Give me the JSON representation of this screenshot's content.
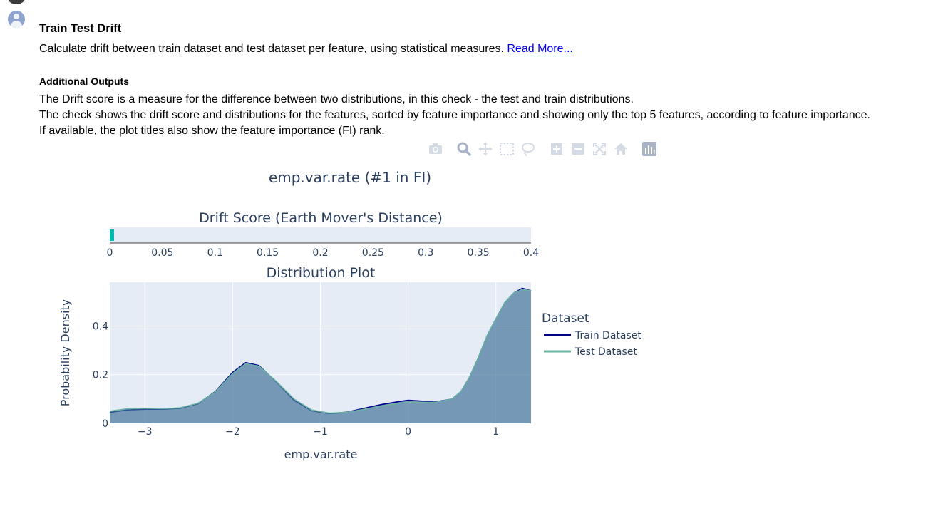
{
  "check": {
    "title": "Train Test Drift",
    "summary": "Calculate drift between train dataset and test dataset per feature, using statistical measures.",
    "read_more": "Read More...",
    "additional_outputs_title": "Additional Outputs",
    "lines": [
      "The Drift score is a measure for the difference between two distributions, in this check - the test and train distributions.",
      "The check shows the drift score and distributions for the features, sorted by feature importance and showing only the top 5 features, according to feature importance.",
      "If available, the plot titles also show the feature importance (FI) rank."
    ]
  },
  "modebar": {
    "icons": [
      "camera-icon",
      "zoom-icon",
      "pan-icon",
      "box-select-icon",
      "lasso-icon",
      "zoom-in-icon",
      "zoom-out-icon",
      "autoscale-icon",
      "home-icon",
      "plotly-logo-icon"
    ]
  },
  "colors": {
    "train": "#00008b",
    "test": "#69b3a2",
    "drift_bar": "#01b8aa",
    "plot_bg": "#e5ecf6",
    "text": "#2a3f5f"
  },
  "chart_data": [
    {
      "type": "bar",
      "title": "emp.var.rate (#1 in FI)",
      "subtitle": "Drift Score (Earth Mover's Distance)",
      "orientation": "horizontal",
      "values": [
        0.002
      ],
      "xlim": [
        0,
        0.4
      ],
      "xticks": [
        0,
        0.05,
        0.1,
        0.15,
        0.2,
        0.25,
        0.3,
        0.35,
        0.4
      ],
      "xtick_labels": [
        "0",
        "0.05",
        "0.1",
        "0.15",
        "0.2",
        "0.25",
        "0.3",
        "0.35",
        "0.4"
      ]
    },
    {
      "type": "area",
      "title": "Distribution Plot",
      "xlabel": "emp.var.rate",
      "ylabel": "Probability Density",
      "xlim": [
        -3.4,
        1.4
      ],
      "ylim": [
        0,
        0.58
      ],
      "xticks": [
        -3,
        -2,
        -1,
        0,
        1
      ],
      "xtick_labels": [
        "−3",
        "−2",
        "−1",
        "0",
        "1"
      ],
      "yticks": [
        0,
        0.2,
        0.4
      ],
      "ytick_labels": [
        "0",
        "0.2",
        "0.4"
      ],
      "legend_title": "Dataset",
      "legend_position": "right",
      "series": [
        {
          "name": "Train Dataset",
          "x": [
            -3.4,
            -3.2,
            -3.0,
            -2.8,
            -2.6,
            -2.4,
            -2.2,
            -2.0,
            -1.85,
            -1.7,
            -1.5,
            -1.3,
            -1.1,
            -0.9,
            -0.7,
            -0.5,
            -0.3,
            -0.1,
            0.0,
            0.1,
            0.3,
            0.5,
            0.6,
            0.7,
            0.8,
            0.9,
            1.0,
            1.1,
            1.2,
            1.3,
            1.4
          ],
          "y": [
            0.045,
            0.055,
            0.058,
            0.058,
            0.062,
            0.08,
            0.13,
            0.21,
            0.25,
            0.238,
            0.17,
            0.095,
            0.052,
            0.04,
            0.046,
            0.062,
            0.078,
            0.09,
            0.095,
            0.093,
            0.088,
            0.1,
            0.13,
            0.19,
            0.27,
            0.36,
            0.43,
            0.495,
            0.535,
            0.555,
            0.545
          ]
        },
        {
          "name": "Test Dataset",
          "x": [
            -3.4,
            -3.2,
            -3.0,
            -2.8,
            -2.6,
            -2.4,
            -2.2,
            -2.0,
            -1.85,
            -1.7,
            -1.5,
            -1.3,
            -1.1,
            -0.9,
            -0.7,
            -0.5,
            -0.3,
            -0.1,
            0.0,
            0.1,
            0.3,
            0.5,
            0.6,
            0.7,
            0.8,
            0.9,
            1.0,
            1.1,
            1.2,
            1.3,
            1.4
          ],
          "y": [
            0.05,
            0.06,
            0.062,
            0.06,
            0.064,
            0.082,
            0.128,
            0.205,
            0.245,
            0.235,
            0.172,
            0.1,
            0.055,
            0.042,
            0.045,
            0.058,
            0.072,
            0.083,
            0.088,
            0.087,
            0.086,
            0.1,
            0.13,
            0.19,
            0.27,
            0.36,
            0.43,
            0.495,
            0.535,
            0.55,
            0.545
          ]
        }
      ]
    }
  ]
}
